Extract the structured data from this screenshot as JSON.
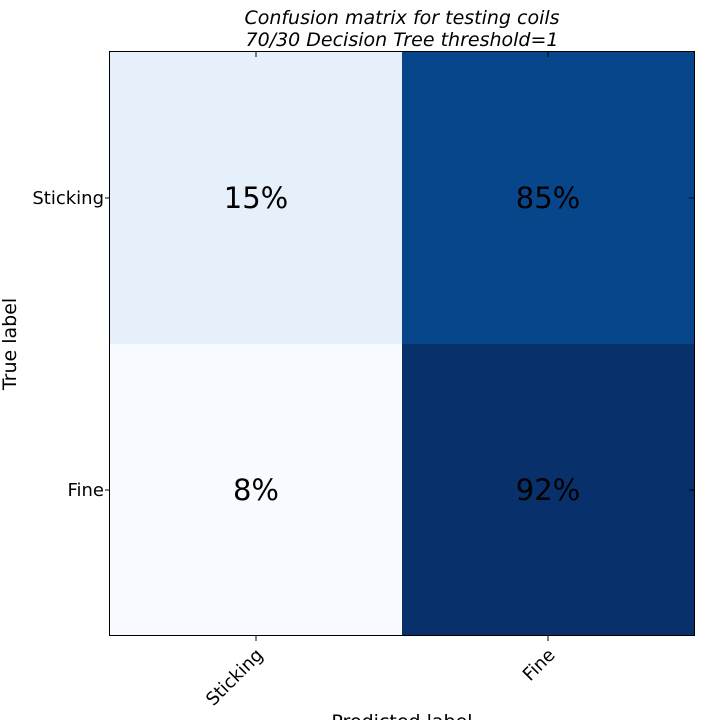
{
  "chart_data": {
    "type": "heatmap",
    "title": [
      "Confusion matrix for testing coils",
      "70/30 Decision Tree threshold=1"
    ],
    "xlabel": "Predicted label",
    "ylabel": "True label",
    "x_categories": [
      "Sticking",
      "Fine"
    ],
    "y_categories": [
      "Sticking",
      "Fine"
    ],
    "values": [
      [
        15,
        85
      ],
      [
        8,
        92
      ]
    ],
    "cell_labels": [
      [
        "15%",
        "85%"
      ],
      [
        "8%",
        "92%"
      ]
    ],
    "colormap": "Blues",
    "color_low": "#f7fbff",
    "color_high": "#08306b",
    "value_range": [
      0,
      100
    ]
  }
}
